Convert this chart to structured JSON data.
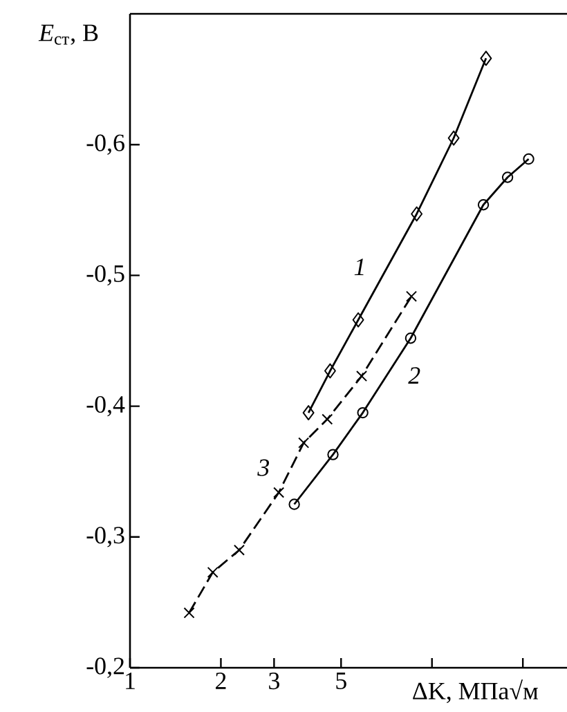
{
  "chart_data": {
    "type": "line",
    "xlabel": "ΔK, МПа√м",
    "ylabel": "*E*$_{ст}$, В",
    "log": "x",
    "xlim": [
      1,
      28
    ],
    "xticks": [
      1,
      2,
      3,
      5,
      {
        "value": 10,
        "label": null
      },
      {
        "value": 20,
        "label": null
      }
    ],
    "ylim": [
      -0.2,
      -0.7
    ],
    "yticks": [
      {
        "value": -0.2,
        "label": "-0,2"
      },
      {
        "value": -0.3,
        "label": "-0,3"
      },
      {
        "value": -0.4,
        "label": "-0,4"
      },
      {
        "value": -0.5,
        "label": "-0,5"
      },
      {
        "value": -0.6,
        "label": "-0,6"
      }
    ],
    "series": [
      {
        "name": "1",
        "color": "#000000",
        "marker": "diamond",
        "line_style": "solid",
        "x": [
          3.9,
          4.6,
          5.7,
          8.9,
          11.8,
          15.1
        ],
        "values": [
          -0.395,
          -0.427,
          -0.466,
          -0.547,
          -0.605,
          -0.666
        ]
      },
      {
        "name": "2",
        "color": "#000000",
        "marker": "circle",
        "line_style": "solid",
        "x": [
          3.5,
          4.7,
          5.9,
          8.5,
          14.8,
          17.8,
          20.9
        ],
        "values": [
          -0.325,
          -0.363,
          -0.395,
          -0.452,
          -0.554,
          -0.575,
          -0.589
        ]
      },
      {
        "name": "3",
        "color": "#000000",
        "marker": "cross",
        "line_style": "dashed",
        "x": [
          1.57,
          1.88,
          2.3,
          3.11,
          3.76,
          4.5,
          5.85,
          8.55
        ],
        "values": [
          -0.242,
          -0.273,
          -0.29,
          -0.334,
          -0.372,
          -0.39,
          -0.423,
          -0.484
        ]
      }
    ]
  }
}
